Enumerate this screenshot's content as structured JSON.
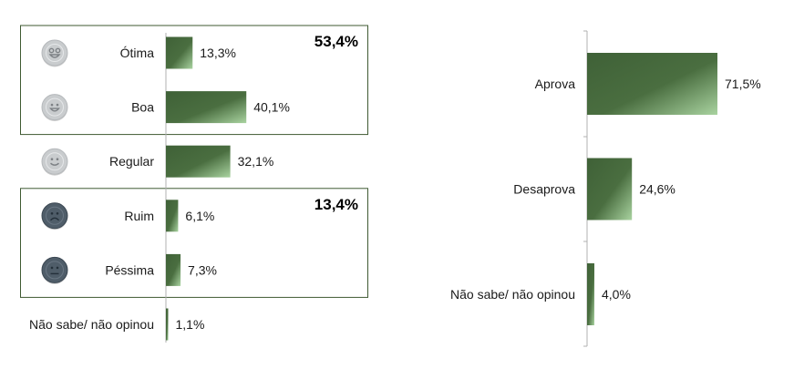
{
  "chart_data": [
    {
      "type": "bar",
      "orientation": "horizontal",
      "categories": [
        "Ótima",
        "Boa",
        "Regular",
        "Ruim",
        "Péssima",
        "Não sabe/ não opinou"
      ],
      "values": [
        13.3,
        40.1,
        32.1,
        6.1,
        7.3,
        1.1
      ],
      "value_labels": [
        "13,3%",
        "40,1%",
        "32,1%",
        "6,1%",
        "7,3%",
        "1,1%"
      ],
      "icons": [
        "very-happy-face-icon",
        "happy-face-icon",
        "neutral-smile-face-icon",
        "sad-face-icon",
        "very-sad-face-icon",
        null
      ],
      "groups": [
        {
          "members": [
            "Ótima",
            "Boa"
          ],
          "total_label": "53,4%"
        },
        {
          "members": [
            "Ruim",
            "Péssima"
          ],
          "total_label": "13,4%"
        }
      ],
      "xlim": [
        0,
        100
      ],
      "grid": false,
      "colors": {
        "bar_dark": "#3f6137",
        "bar_light": "#a9d3a0",
        "icon_positive": "#c9ccce",
        "icon_negative": "#4f5d69",
        "frame": "#3f5a32"
      }
    },
    {
      "type": "bar",
      "orientation": "horizontal",
      "categories": [
        "Aprova",
        "Desaprova",
        "Não sabe/ não opinou"
      ],
      "values": [
        71.5,
        24.6,
        4.0
      ],
      "value_labels": [
        "71,5%",
        "24,6%",
        "4,0%"
      ],
      "xlim": [
        0,
        100
      ],
      "grid": false,
      "colors": {
        "bar_dark": "#3f6137",
        "bar_light": "#a9d3a0"
      }
    }
  ]
}
